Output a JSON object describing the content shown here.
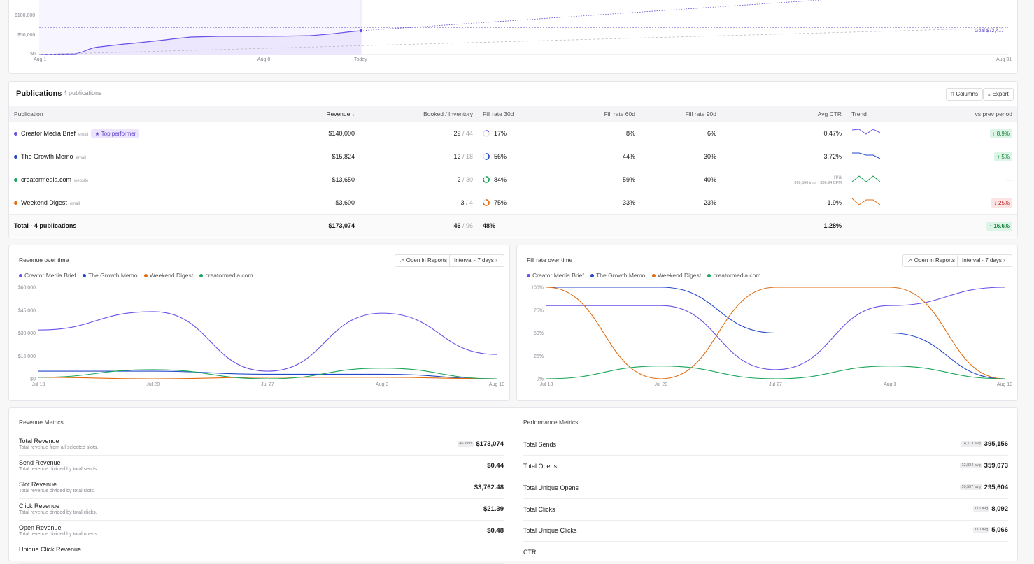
{
  "colors": {
    "series": {
      "creator_media_brief": "#6b4fe6",
      "the_growth_memo": "#2347c9",
      "weekend_digest": "#e06c10",
      "creatormedia_com": "#1aa55a"
    },
    "accent": "#6b4fe6",
    "up": "#15803d",
    "down": "#b91c1c"
  },
  "top_chart": {
    "y_ticks": [
      "$100,000",
      "$50,000",
      "$0"
    ],
    "x_ticks": [
      "Aug 1",
      "Aug 8",
      "Today",
      "Aug 31"
    ],
    "goal_label": "Goal $72,417"
  },
  "publications": {
    "title": "Publications",
    "subtitle": "· 4 publications",
    "columns_button": "Columns",
    "export_button": "Export",
    "columns": [
      "Publication",
      "Revenue",
      "Booked / Inventory",
      "Fill rate 30d",
      "Fill rate 60d",
      "Fill rate 90d",
      "Avg CTR",
      "Trend",
      "vs prev period"
    ],
    "rows": [
      {
        "name": "Creator Media Brief",
        "type": "email",
        "badge": "★ Top performer",
        "revenue": "$140,000",
        "booked": "29",
        "inventory": "/ 44",
        "fill30": "17%",
        "fill30_value": 17,
        "fill60": "8%",
        "fill90": "6%",
        "ctr": "0.47%",
        "ctr_note": "",
        "delta": "↑ 8.9%",
        "delta_dir": "up",
        "color": "#6b4fe6"
      },
      {
        "name": "The Growth Memo",
        "type": "email",
        "badge": "",
        "revenue": "$15,824",
        "booked": "12",
        "inventory": "/ 18",
        "fill30": "56%",
        "fill30_value": 56,
        "fill60": "44%",
        "fill90": "30%",
        "ctr": "3.72%",
        "ctr_note": "",
        "delta": "↑ 5%",
        "delta_dir": "up",
        "color": "#2347c9"
      },
      {
        "name": "creatormedia.com",
        "type": "website",
        "badge": "",
        "revenue": "$13,650",
        "booked": "2",
        "inventory": "/ 30",
        "fill30": "84%",
        "fill30_value": 84,
        "fill60": "59%",
        "fill90": "40%",
        "ctr": "n/a",
        "ctr_note": "369,500 impr · $36.94 CPM",
        "delta": "—",
        "delta_dir": "none",
        "color": "#1aa55a"
      },
      {
        "name": "Weekend Digest",
        "type": "email",
        "badge": "",
        "revenue": "$3,600",
        "booked": "3",
        "inventory": "/ 4",
        "fill30": "75%",
        "fill30_value": 75,
        "fill60": "33%",
        "fill90": "23%",
        "ctr": "1.9%",
        "ctr_note": "",
        "delta": "↓ 25%",
        "delta_dir": "down",
        "color": "#e06c10"
      }
    ],
    "total": {
      "label": "Total · 4 publications",
      "revenue": "$173,074",
      "booked": "46",
      "inventory": "/ 96",
      "fill30": "48%",
      "ctr": "1.28%",
      "delta": "↑ 16.6%"
    }
  },
  "revenue_chart": {
    "title": "Revenue over time",
    "open_button": "Open in Reports",
    "interval_button": "Interval · 7 days",
    "legend": [
      "Creator Media Brief",
      "The Growth Memo",
      "Weekend Digest",
      "creatormedia.com"
    ]
  },
  "fill_chart": {
    "title": "Fill rate over time",
    "open_button": "Open in Reports",
    "interval_button": "Interval · 7 days",
    "legend": [
      "Creator Media Brief",
      "The Growth Memo",
      "Weekend Digest",
      "creatormedia.com"
    ]
  },
  "chart_data": [
    {
      "type": "line",
      "title": "Revenue over time",
      "x": [
        "Jul 13",
        "Jul 20",
        "Jul 27",
        "Aug 3",
        "Aug 10"
      ],
      "y_ticks": [
        "$60,000",
        "$45,000",
        "$30,000",
        "$15,000",
        "$0"
      ],
      "ylim": [
        0,
        60000
      ],
      "legend_position": "top-left",
      "series": [
        {
          "name": "Creator Media Brief",
          "color": "#6b4fe6",
          "values": [
            32000,
            44000,
            5000,
            43000,
            16000
          ]
        },
        {
          "name": "The Growth Memo",
          "color": "#2347c9",
          "values": [
            5000,
            5000,
            3000,
            3000,
            0
          ]
        },
        {
          "name": "Weekend Digest",
          "color": "#e06c10",
          "values": [
            1000,
            0,
            1000,
            1000,
            0
          ]
        },
        {
          "name": "creatormedia.com",
          "color": "#1aa55a",
          "values": [
            1000,
            6000,
            0,
            7000,
            0
          ]
        }
      ]
    },
    {
      "type": "line",
      "title": "Fill rate over time",
      "x": [
        "Jul 13",
        "Jul 20",
        "Jul 27",
        "Aug 3",
        "Aug 10"
      ],
      "y_ticks": [
        "100%",
        "75%",
        "50%",
        "25%",
        "0%"
      ],
      "ylim": [
        0,
        100
      ],
      "legend_position": "top-left",
      "series": [
        {
          "name": "Creator Media Brief",
          "color": "#6b4fe6",
          "values": [
            80,
            80,
            10,
            80,
            100
          ]
        },
        {
          "name": "The Growth Memo",
          "color": "#2347c9",
          "values": [
            100,
            100,
            50,
            50,
            0
          ]
        },
        {
          "name": "Weekend Digest",
          "color": "#e06c10",
          "values": [
            100,
            0,
            100,
            100,
            0
          ]
        },
        {
          "name": "creatormedia.com",
          "color": "#1aa55a",
          "values": [
            0,
            14,
            0,
            14,
            0
          ]
        }
      ]
    }
  ],
  "revenue_metrics": {
    "title": "Revenue Metrics",
    "rows": [
      {
        "name": "Total Revenue",
        "desc": "Total revenue from all selected slots.",
        "badge": "46 slots",
        "value": "$173,074"
      },
      {
        "name": "Send Revenue",
        "desc": "Total revenue divided by total sends.",
        "badge": "",
        "value": "$0.44"
      },
      {
        "name": "Slot Revenue",
        "desc": "Total revenue divided by total slots.",
        "badge": "",
        "value": "$3,762.48"
      },
      {
        "name": "Click Revenue",
        "desc": "Total revenue divided by total clicks.",
        "badge": "",
        "value": "$21.39"
      },
      {
        "name": "Open Revenue",
        "desc": "Total revenue divided by total opens.",
        "badge": "",
        "value": "$0.48"
      },
      {
        "name": "Unique Click Revenue",
        "desc": "",
        "badge": "",
        "value": ""
      }
    ]
  },
  "performance_metrics": {
    "title": "Performance Metrics",
    "rows": [
      {
        "name": "Total Sends",
        "badge": "14,113 avg",
        "value": "395,156"
      },
      {
        "name": "Total Opens",
        "badge": "12,824 avg",
        "value": "359,073"
      },
      {
        "name": "Total Unique Opens",
        "badge": "10,557 avg",
        "value": "295,604"
      },
      {
        "name": "Total Clicks",
        "badge": "176 avg",
        "value": "8,092"
      },
      {
        "name": "Total Unique Clicks",
        "badge": "110 avg",
        "value": "5,066"
      },
      {
        "name": "CTR",
        "badge": "",
        "value": ""
      }
    ]
  }
}
